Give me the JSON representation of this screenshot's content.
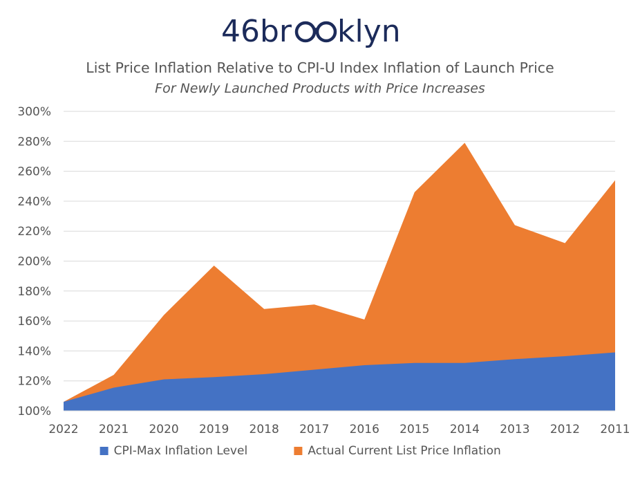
{
  "logo": {
    "text_pre": "46br",
    "text_post": "klyn",
    "glasses_text": "oo",
    "color": "#1c2b5a"
  },
  "chart_data": {
    "type": "area",
    "title": "List Price Inflation Relative to CPI-U Index Inflation of Launch Price",
    "subtitle": "For Newly Launched Products with Price Increases",
    "categories": [
      "2022",
      "2021",
      "2020",
      "2019",
      "2018",
      "2017",
      "2016",
      "2015",
      "2014",
      "2013",
      "2012",
      "2011"
    ],
    "series": [
      {
        "name": "CPI-Max Inflation Level",
        "color": "#4472c4",
        "values": [
          106,
          115.5,
          121,
          122.5,
          124.5,
          127.5,
          130.5,
          132,
          132,
          134.5,
          136.5,
          139
        ]
      },
      {
        "name": "Actual Current List Price Inflation",
        "color": "#ed7d31",
        "values": [
          106,
          124,
          164,
          197,
          168,
          171,
          161,
          246,
          279,
          224,
          212,
          254
        ]
      }
    ],
    "stacked": false,
    "ylim": [
      100,
      300
    ],
    "yticks": [
      100,
      120,
      140,
      160,
      180,
      200,
      220,
      240,
      260,
      280,
      300
    ],
    "ytick_labels": [
      "100%",
      "120%",
      "140%",
      "160%",
      "180%",
      "200%",
      "220%",
      "240%",
      "260%",
      "280%",
      "300%"
    ],
    "grid": true,
    "legend": "bottom"
  }
}
